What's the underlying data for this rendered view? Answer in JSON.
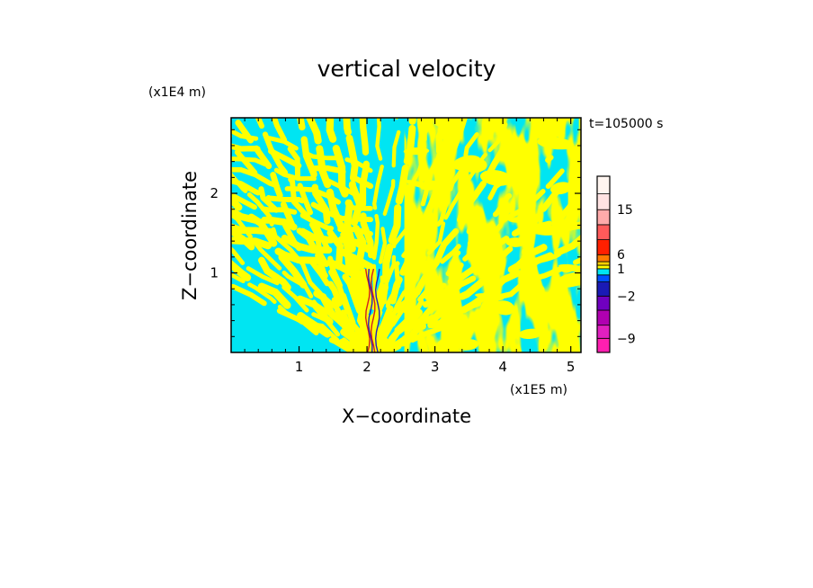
{
  "chart_data": {
    "type": "heatmap",
    "title": "vertical velocity",
    "xlabel": "X−coordinate",
    "ylabel": "Z−coordinate",
    "x_unit": "(x1E5 m)",
    "y_unit": "(x1E4 m)",
    "time_label": "t=105000 s",
    "xlim": [
      0,
      5.15
    ],
    "ylim": [
      0,
      2.95
    ],
    "x_ticks": [
      {
        "value": 1,
        "label": "1"
      },
      {
        "value": 2,
        "label": "2"
      },
      {
        "value": 3,
        "label": "3"
      },
      {
        "value": 4,
        "label": "4"
      },
      {
        "value": 5,
        "label": "5"
      }
    ],
    "y_ticks": [
      {
        "value": 1,
        "label": "1"
      },
      {
        "value": 2,
        "label": "2"
      }
    ],
    "field_colors": {
      "negative": "#00e5f2",
      "positive": "#ffff00",
      "jet_core": "#2020c0",
      "jet_edge": "#d02020"
    },
    "jet_center_x": 2.05,
    "jet_top_z": 1.05,
    "colorbar": {
      "levels": [
        -12,
        -9,
        -6,
        -4,
        -2,
        -1,
        0,
        1,
        2,
        4,
        6,
        9,
        12,
        15,
        18,
        24
      ],
      "colors": [
        "#ff1fb0",
        "#e020c0",
        "#b000b0",
        "#7000c0",
        "#1a1ab5",
        "#0050ff",
        "#00e5f2",
        "#ffff00",
        "#ffd000",
        "#ff7a00",
        "#ff2000",
        "#ff5a5a",
        "#ffaaaa",
        "#ffe2e2",
        "#fff5f0"
      ],
      "tick_labels": [
        {
          "value": 15,
          "label": "15"
        },
        {
          "value": 6,
          "label": "6"
        },
        {
          "value": 1,
          "label": "1"
        },
        {
          "value": -2,
          "label": "−2"
        },
        {
          "value": -9,
          "label": "−9"
        }
      ]
    }
  }
}
